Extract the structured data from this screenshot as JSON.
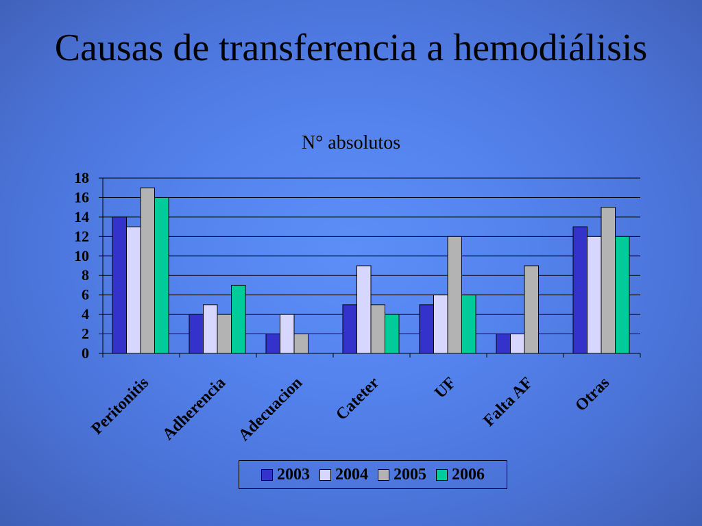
{
  "slide": {
    "title": "Causas de transferencia a hemodiálisis",
    "subtitle": "N° absolutos"
  },
  "chart_data": {
    "type": "bar",
    "categories": [
      "Peritonitis",
      "Adherencia",
      "Adecuacion",
      "Cateter",
      "UF",
      "Falta AF",
      "Otras"
    ],
    "series": [
      {
        "name": "2003",
        "color": "#3333cc",
        "values": [
          14,
          4,
          2,
          5,
          5,
          2,
          13
        ]
      },
      {
        "name": "2004",
        "color": "#d6d6ff",
        "values": [
          13,
          5,
          4,
          9,
          6,
          2,
          12
        ]
      },
      {
        "name": "2005",
        "color": "#b3b3b3",
        "values": [
          17,
          4,
          2,
          5,
          12,
          9,
          15
        ]
      },
      {
        "name": "2006",
        "color": "#00cc99",
        "values": [
          16,
          7,
          0,
          4,
          6,
          0,
          12
        ]
      }
    ],
    "yticks": [
      "0",
      "2",
      "4",
      "6",
      "8",
      "10",
      "12",
      "14",
      "16",
      "18"
    ],
    "ylim": [
      0,
      18
    ],
    "grid": true,
    "legend_position": "bottom"
  }
}
